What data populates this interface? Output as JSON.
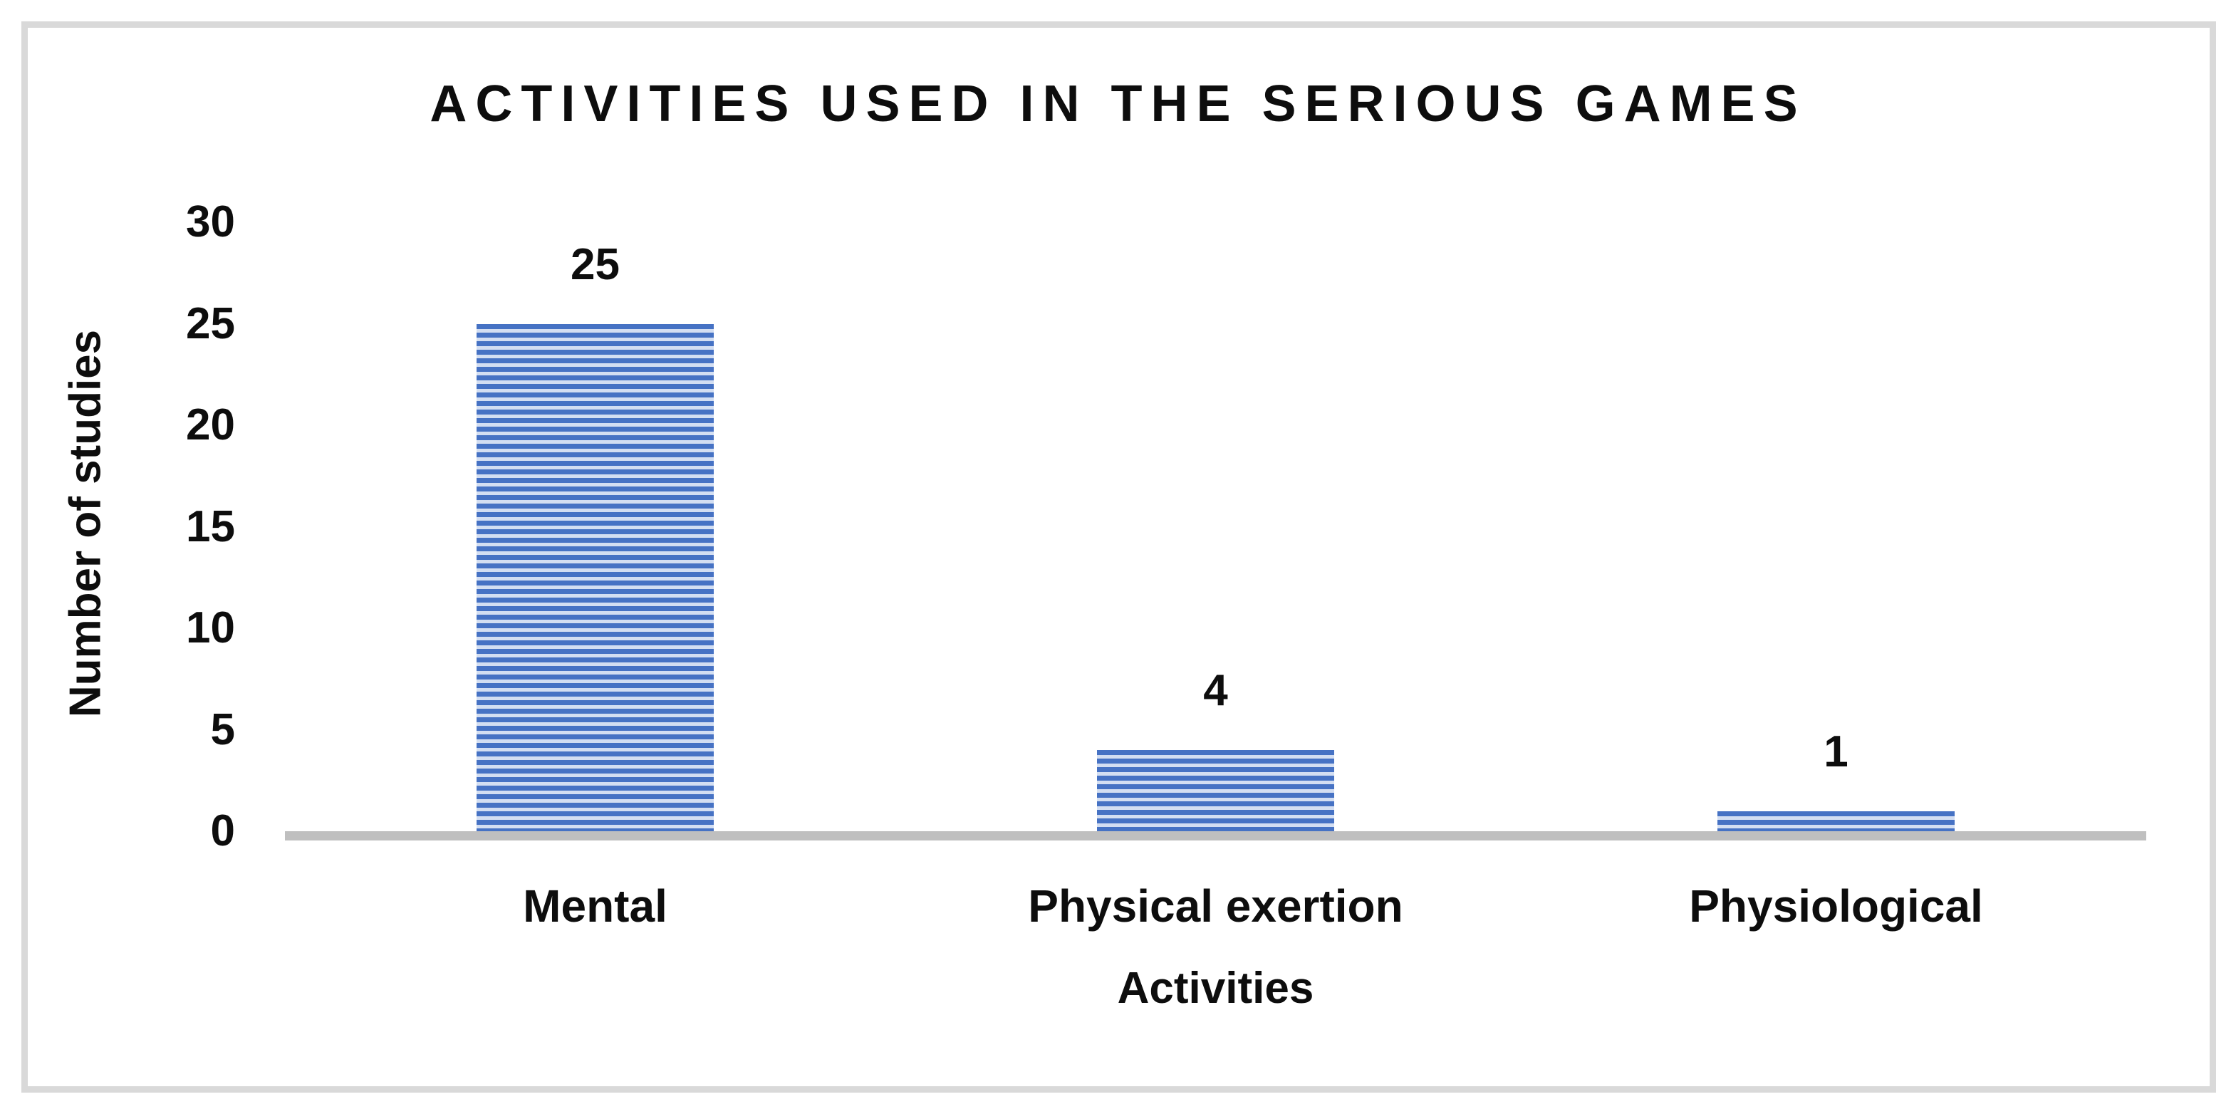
{
  "chart_data": {
    "type": "bar",
    "title": "ACTIVITIES USED IN THE SERIOUS GAMES",
    "xlabel": "Activities",
    "ylabel": "Number of studies",
    "categories": [
      "Mental",
      "Physical exertion",
      "Physiological"
    ],
    "values": [
      25,
      4,
      1
    ],
    "data_labels": [
      "25",
      "4",
      "1"
    ],
    "yticks": [
      0,
      5,
      10,
      15,
      20,
      25,
      30
    ],
    "ylim": [
      0,
      30
    ],
    "grid": false,
    "legend": false,
    "colors": {
      "bar_stripe_dark": "#4672c4",
      "bar_stripe_light": "#d3def2",
      "axis_line": "#bfbfbf",
      "frame_border": "#d9d9d9",
      "text": "#0d0d0d",
      "background": "#ffffff"
    }
  }
}
